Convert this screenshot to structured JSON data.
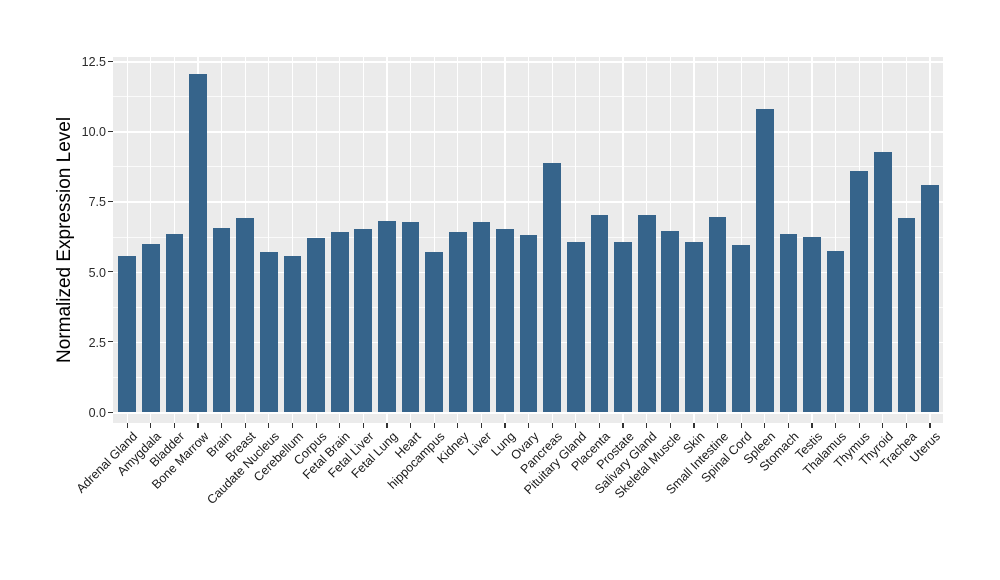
{
  "chart_data": {
    "type": "bar",
    "title": "",
    "xlabel": "",
    "ylabel": "Normalized Expression Level",
    "categories": [
      "Adrenal Gland",
      "Amygdala",
      "Bladder",
      "Bone Marrow",
      "Brain",
      "Breast",
      "Caudate Nucleus",
      "Cerebellum",
      "Corpus",
      "Fetal Brain",
      "Fetal Liver",
      "Fetal Lung",
      "Heart",
      "hippocampus",
      "Kidney",
      "Liver",
      "Lung",
      "Ovary",
      "Pancreas",
      "Pituitary Gland",
      "Placenta",
      "Prostate",
      "Salivary Gland",
      "Skeletal Muscle",
      "Skin",
      "Small Intestine",
      "Spinal Cord",
      "Spleen",
      "Stomach",
      "Testis",
      "Thalamus",
      "Thymus",
      "Thyroid",
      "Trachea",
      "Uterus"
    ],
    "values": [
      5.55,
      6.0,
      6.35,
      12.05,
      6.55,
      6.9,
      5.7,
      5.55,
      6.2,
      6.4,
      6.5,
      6.8,
      6.75,
      5.7,
      6.4,
      6.75,
      6.5,
      6.3,
      8.85,
      6.05,
      7.0,
      6.05,
      7.0,
      6.45,
      6.05,
      6.95,
      5.95,
      10.8,
      6.35,
      6.25,
      5.75,
      8.6,
      9.25,
      6.9,
      8.1
    ],
    "ylim": [
      0,
      12.5
    ],
    "yticks": [
      0.0,
      2.5,
      5.0,
      7.5,
      10.0,
      12.5
    ],
    "ytick_labels": [
      "0.0",
      "2.5",
      "5.0",
      "7.5",
      "10.0",
      "12.5"
    ],
    "minor_yticks": [
      1.25,
      3.75,
      6.25,
      8.75,
      11.25
    ],
    "grid": "white major+minor horizontal lines, white vertical lines at each category",
    "legend": "none",
    "x_label_angle_deg": 45,
    "colors": {
      "bar": "#36648B",
      "panel_background": "#EBEBEB",
      "gridline": "#FFFFFF",
      "tick_text": "#2b2b2b",
      "axis_title_text": "#000000"
    }
  }
}
